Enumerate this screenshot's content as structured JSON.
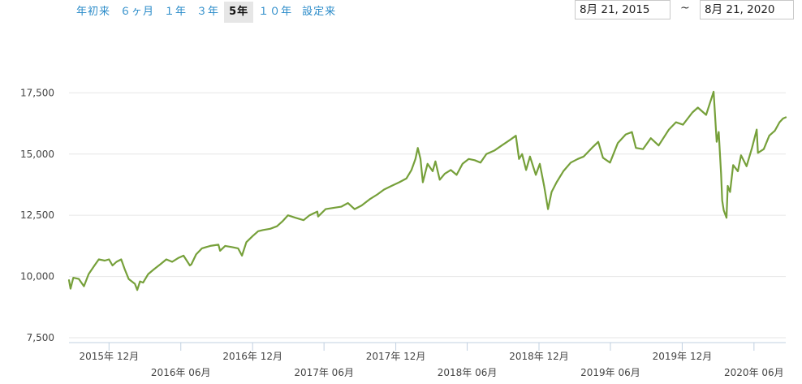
{
  "range_tabs": {
    "ytd": "年初来",
    "six_months": "６ヶ月",
    "one_year": "１年",
    "three_years": "３年",
    "five_years": "5年",
    "ten_years": "１０年",
    "since_inception": "設定来"
  },
  "active_tab": "five_years",
  "date_range": {
    "from": "8月 21, 2015",
    "separator": "~",
    "to": "8月 21, 2020"
  },
  "colors": {
    "line": "#76a03a",
    "grid": "#e6e6e6",
    "axis": "#c0d0e0",
    "active_tab_bg": "#e6e6e6",
    "tab_text": "#2a8bc9"
  },
  "chart_data": {
    "type": "line",
    "title": "",
    "xlabel": "",
    "ylabel": "",
    "ylim": [
      7300,
      19800
    ],
    "xlim": [
      "2015-08-21",
      "2020-08-21"
    ],
    "grid": true,
    "legend": "none",
    "yticks": [
      {
        "value": 7500,
        "label": "7,500"
      },
      {
        "value": 10000,
        "label": "10,000"
      },
      {
        "value": 12500,
        "label": "12,500"
      },
      {
        "value": 15000,
        "label": "15,000"
      },
      {
        "value": 17500,
        "label": "17,500"
      }
    ],
    "xticks": [
      {
        "date": "2015-12-01",
        "label": "2015年 12月"
      },
      {
        "date": "2016-06-01",
        "label": "2016年 06月"
      },
      {
        "date": "2016-12-01",
        "label": "2016年 12月"
      },
      {
        "date": "2017-06-01",
        "label": "2017年 06月"
      },
      {
        "date": "2017-12-01",
        "label": "2017年 12月"
      },
      {
        "date": "2018-06-01",
        "label": "2018年 06月"
      },
      {
        "date": "2018-12-01",
        "label": "2018年 12月"
      },
      {
        "date": "2019-06-01",
        "label": "2019年 06月"
      },
      {
        "date": "2019-12-01",
        "label": "2019年 12月"
      },
      {
        "date": "2020-06-01",
        "label": "2020年 06月"
      }
    ],
    "series": [
      {
        "values": [
          [
            "2015-08-21",
            9850
          ],
          [
            "2015-08-25",
            9500
          ],
          [
            "2015-09-01",
            9950
          ],
          [
            "2015-09-15",
            9900
          ],
          [
            "2015-09-28",
            9600
          ],
          [
            "2015-10-10",
            10100
          ],
          [
            "2015-10-25",
            10450
          ],
          [
            "2015-11-05",
            10700
          ],
          [
            "2015-11-20",
            10650
          ],
          [
            "2015-12-01",
            10700
          ],
          [
            "2015-12-10",
            10450
          ],
          [
            "2015-12-20",
            10600
          ],
          [
            "2016-01-01",
            10700
          ],
          [
            "2016-01-10",
            10300
          ],
          [
            "2016-01-20",
            9900
          ],
          [
            "2016-01-28",
            9800
          ],
          [
            "2016-02-05",
            9700
          ],
          [
            "2016-02-11",
            9450
          ],
          [
            "2016-02-18",
            9800
          ],
          [
            "2016-02-26",
            9750
          ],
          [
            "2016-03-10",
            10100
          ],
          [
            "2016-03-25",
            10300
          ],
          [
            "2016-04-10",
            10500
          ],
          [
            "2016-04-25",
            10700
          ],
          [
            "2016-05-10",
            10600
          ],
          [
            "2016-05-25",
            10750
          ],
          [
            "2016-06-08",
            10850
          ],
          [
            "2016-06-24",
            10450
          ],
          [
            "2016-06-28",
            10500
          ],
          [
            "2016-07-10",
            10900
          ],
          [
            "2016-07-25",
            11150
          ],
          [
            "2016-08-15",
            11250
          ],
          [
            "2016-09-05",
            11300
          ],
          [
            "2016-09-09",
            11050
          ],
          [
            "2016-09-22",
            11250
          ],
          [
            "2016-10-10",
            11200
          ],
          [
            "2016-10-25",
            11150
          ],
          [
            "2016-11-04",
            10850
          ],
          [
            "2016-11-15",
            11400
          ],
          [
            "2016-12-01",
            11650
          ],
          [
            "2016-12-15",
            11850
          ],
          [
            "2016-12-28",
            11900
          ],
          [
            "2017-01-15",
            11950
          ],
          [
            "2017-02-01",
            12050
          ],
          [
            "2017-02-15",
            12250
          ],
          [
            "2017-03-01",
            12500
          ],
          [
            "2017-03-20",
            12400
          ],
          [
            "2017-04-10",
            12300
          ],
          [
            "2017-04-25",
            12500
          ],
          [
            "2017-05-15",
            12650
          ],
          [
            "2017-05-17",
            12450
          ],
          [
            "2017-06-05",
            12750
          ],
          [
            "2017-06-25",
            12800
          ],
          [
            "2017-07-15",
            12850
          ],
          [
            "2017-08-01",
            13000
          ],
          [
            "2017-08-18",
            12750
          ],
          [
            "2017-09-05",
            12900
          ],
          [
            "2017-09-25",
            13150
          ],
          [
            "2017-10-15",
            13350
          ],
          [
            "2017-11-01",
            13550
          ],
          [
            "2017-11-20",
            13700
          ],
          [
            "2017-12-10",
            13850
          ],
          [
            "2017-12-28",
            14000
          ],
          [
            "2018-01-10",
            14350
          ],
          [
            "2018-01-20",
            14800
          ],
          [
            "2018-01-26",
            15250
          ],
          [
            "2018-02-02",
            14800
          ],
          [
            "2018-02-08",
            13850
          ],
          [
            "2018-02-20",
            14600
          ],
          [
            "2018-03-05",
            14300
          ],
          [
            "2018-03-12",
            14700
          ],
          [
            "2018-03-23",
            13950
          ],
          [
            "2018-04-05",
            14200
          ],
          [
            "2018-04-20",
            14350
          ],
          [
            "2018-05-05",
            14150
          ],
          [
            "2018-05-20",
            14600
          ],
          [
            "2018-06-05",
            14800
          ],
          [
            "2018-06-20",
            14750
          ],
          [
            "2018-07-05",
            14650
          ],
          [
            "2018-07-20",
            15000
          ],
          [
            "2018-08-10",
            15150
          ],
          [
            "2018-08-28",
            15350
          ],
          [
            "2018-09-20",
            15600
          ],
          [
            "2018-10-03",
            15750
          ],
          [
            "2018-10-11",
            14800
          ],
          [
            "2018-10-19",
            15000
          ],
          [
            "2018-10-29",
            14350
          ],
          [
            "2018-11-08",
            14900
          ],
          [
            "2018-11-23",
            14150
          ],
          [
            "2018-12-03",
            14600
          ],
          [
            "2018-12-14",
            13700
          ],
          [
            "2018-12-24",
            12750
          ],
          [
            "2019-01-02",
            13450
          ],
          [
            "2019-01-15",
            13850
          ],
          [
            "2019-02-01",
            14300
          ],
          [
            "2019-02-20",
            14650
          ],
          [
            "2019-03-10",
            14800
          ],
          [
            "2019-03-25",
            14900
          ],
          [
            "2019-04-15",
            15250
          ],
          [
            "2019-05-01",
            15500
          ],
          [
            "2019-05-13",
            14850
          ],
          [
            "2019-05-31",
            14650
          ],
          [
            "2019-06-20",
            15450
          ],
          [
            "2019-07-10",
            15800
          ],
          [
            "2019-07-26",
            15900
          ],
          [
            "2019-08-05",
            15250
          ],
          [
            "2019-08-23",
            15200
          ],
          [
            "2019-09-12",
            15650
          ],
          [
            "2019-10-02",
            15350
          ],
          [
            "2019-10-28",
            16000
          ],
          [
            "2019-11-15",
            16300
          ],
          [
            "2019-12-03",
            16200
          ],
          [
            "2019-12-27",
            16700
          ],
          [
            "2020-01-10",
            16900
          ],
          [
            "2020-01-31",
            16600
          ],
          [
            "2020-02-19",
            17550
          ],
          [
            "2020-02-27",
            15500
          ],
          [
            "2020-03-03",
            15900
          ],
          [
            "2020-03-09",
            14200
          ],
          [
            "2020-03-12",
            13100
          ],
          [
            "2020-03-16",
            12700
          ],
          [
            "2020-03-23",
            12400
          ],
          [
            "2020-03-26",
            13700
          ],
          [
            "2020-04-01",
            13450
          ],
          [
            "2020-04-09",
            14550
          ],
          [
            "2020-04-21",
            14300
          ],
          [
            "2020-04-29",
            14950
          ],
          [
            "2020-05-13",
            14500
          ],
          [
            "2020-05-27",
            15250
          ],
          [
            "2020-06-08",
            16000
          ],
          [
            "2020-06-11",
            15050
          ],
          [
            "2020-06-26",
            15200
          ],
          [
            "2020-07-10",
            15750
          ],
          [
            "2020-07-24",
            15950
          ],
          [
            "2020-08-05",
            16300
          ],
          [
            "2020-08-14",
            16450
          ],
          [
            "2020-08-21",
            16500
          ]
        ]
      }
    ]
  }
}
